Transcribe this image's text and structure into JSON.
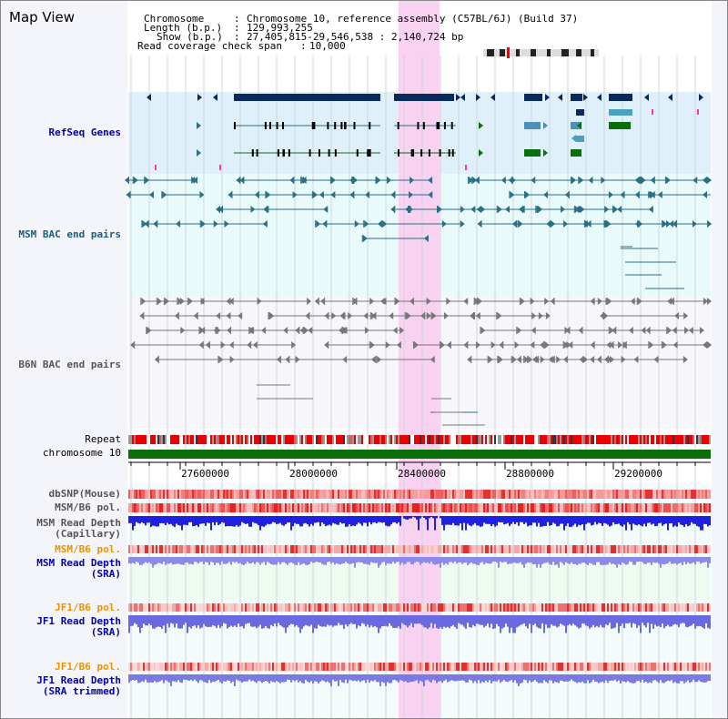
{
  "view_title": "Map View",
  "header": {
    "chromosome_key": "Chromosome",
    "chromosome_val": "Chromosome 10, reference assembly (C57BL/6J) (Build 37)",
    "length_key": "Length (b.p.)",
    "length_val": "129,993,255",
    "show_key": "Show (b.p.)",
    "show_val": "27,405,815-29,546,538 : 2,140,724 bp",
    "coverage_key": "Read coverage check span",
    "coverage_val": "10,000"
  },
  "tracks": {
    "refseq": "RefSeq Genes",
    "msm_bac": "MSM BAC end pairs",
    "b6n_bac": "B6N BAC end pairs",
    "repeat": "Repeat",
    "chromosome": "chromosome 10",
    "dbsnp": "dbSNP(Mouse)",
    "msm_pol": "MSM/B6 pol.",
    "msm_depth_cap_1": "MSM Read Depth",
    "msm_depth_cap_2": "(Capillary)",
    "msm_pol2": "MSM/B6 pol.",
    "msm_depth_sra_1": "MSM Read Depth",
    "msm_depth_sra_2": "(SRA)",
    "jf1_pol": "JF1/B6 pol.",
    "jf1_depth_1": "JF1 Read Depth",
    "jf1_depth_2": "(SRA)",
    "jf1_pol2": "JF1/B6 pol.",
    "jf1_trim_1": "JF1 Read Depth",
    "jf1_trim_2": "(SRA trimmed)"
  },
  "axis_ticks": [
    "27600000",
    "28000000",
    "28400000",
    "28800000",
    "29200000"
  ],
  "colors": {
    "refseq_bg": "#dff0fa",
    "highlight": "#f9d2f2",
    "dark_blue": "#0a2a5c",
    "teal": "#2a6f86",
    "green": "#0a6f0a",
    "label_blue": "#0000aa",
    "label_orange": "#e69500",
    "label_teal": "#1b5d7a",
    "label_gray": "#555555"
  }
}
